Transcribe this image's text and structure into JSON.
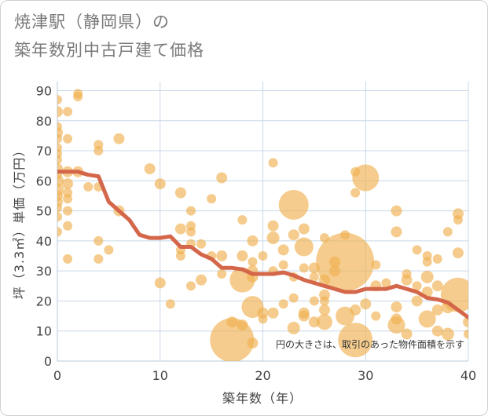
{
  "title_lines": [
    "焼津駅（静岡県）の",
    "築年数別中古戸建て価格"
  ],
  "chart_data": {
    "type": "scatter",
    "title": "焼津駅（静岡県）の築年数別中古戸建て価格",
    "xlabel": "築年数（年）",
    "ylabel": "坪（3.3㎡）単価（万円）",
    "xlim": [
      0,
      40
    ],
    "ylim": [
      0,
      93
    ],
    "xticks": [
      0,
      10,
      20,
      30,
      40
    ],
    "yticks": [
      0,
      10,
      20,
      30,
      40,
      50,
      60,
      70,
      80,
      90
    ],
    "grid": true,
    "note": "円の大きさは、取引のあった物件面積を示す",
    "colors": {
      "bubble": "#f0b050",
      "line": "#d4664a",
      "grid": "#c8d8e8"
    },
    "trend_line": {
      "x": [
        0,
        1,
        2,
        3,
        4,
        5,
        6,
        7,
        8,
        9,
        10,
        11,
        12,
        13,
        14,
        15,
        16,
        17,
        18,
        19,
        20,
        21,
        22,
        23,
        24,
        25,
        26,
        27,
        28,
        29,
        30,
        31,
        32,
        33,
        34,
        35,
        36,
        37,
        38,
        39,
        40
      ],
      "y": [
        63,
        63,
        63,
        62,
        61.5,
        53,
        50,
        47,
        42,
        41,
        41,
        41.5,
        38,
        38,
        35.5,
        34,
        31,
        31,
        30.5,
        29,
        29,
        29,
        29.5,
        28.5,
        27,
        26,
        25,
        24,
        23,
        23,
        24,
        24,
        24,
        25,
        24,
        23,
        21,
        20.5,
        19.5,
        17,
        14.5
      ]
    },
    "bubbles": [
      {
        "x": 0,
        "y": 87,
        "r": 6
      },
      {
        "x": 0,
        "y": 83,
        "r": 7
      },
      {
        "x": 0,
        "y": 78,
        "r": 6
      },
      {
        "x": 0,
        "y": 76,
        "r": 7
      },
      {
        "x": 0,
        "y": 74,
        "r": 6
      },
      {
        "x": 0,
        "y": 71,
        "r": 6
      },
      {
        "x": 0,
        "y": 69,
        "r": 6
      },
      {
        "x": 0,
        "y": 67,
        "r": 6
      },
      {
        "x": 0,
        "y": 64,
        "r": 7
      },
      {
        "x": 0,
        "y": 62,
        "r": 6
      },
      {
        "x": 0,
        "y": 60,
        "r": 8
      },
      {
        "x": 0,
        "y": 57,
        "r": 8
      },
      {
        "x": 0,
        "y": 55,
        "r": 7
      },
      {
        "x": 0,
        "y": 53,
        "r": 7
      },
      {
        "x": 0,
        "y": 51,
        "r": 6
      },
      {
        "x": 0,
        "y": 48,
        "r": 6
      },
      {
        "x": 0,
        "y": 43,
        "r": 6
      },
      {
        "x": 1,
        "y": 83,
        "r": 6
      },
      {
        "x": 1,
        "y": 74,
        "r": 6
      },
      {
        "x": 1,
        "y": 63,
        "r": 7
      },
      {
        "x": 1,
        "y": 59,
        "r": 7
      },
      {
        "x": 1,
        "y": 56,
        "r": 6
      },
      {
        "x": 1,
        "y": 54,
        "r": 6
      },
      {
        "x": 1,
        "y": 50,
        "r": 6
      },
      {
        "x": 1,
        "y": 45,
        "r": 6
      },
      {
        "x": 1,
        "y": 34,
        "r": 6
      },
      {
        "x": 2,
        "y": 89,
        "r": 6
      },
      {
        "x": 2,
        "y": 88,
        "r": 6
      },
      {
        "x": 2,
        "y": 63,
        "r": 7
      },
      {
        "x": 3,
        "y": 58,
        "r": 6
      },
      {
        "x": 4,
        "y": 72,
        "r": 6
      },
      {
        "x": 4,
        "y": 70,
        "r": 6
      },
      {
        "x": 4,
        "y": 58,
        "r": 6
      },
      {
        "x": 4,
        "y": 40,
        "r": 6
      },
      {
        "x": 4,
        "y": 34,
        "r": 6
      },
      {
        "x": 5,
        "y": 37,
        "r": 6
      },
      {
        "x": 6,
        "y": 74,
        "r": 7
      },
      {
        "x": 6,
        "y": 50,
        "r": 7
      },
      {
        "x": 9,
        "y": 64,
        "r": 7
      },
      {
        "x": 10,
        "y": 59,
        "r": 7
      },
      {
        "x": 10,
        "y": 26,
        "r": 7
      },
      {
        "x": 11,
        "y": 19,
        "r": 6
      },
      {
        "x": 12,
        "y": 56,
        "r": 7
      },
      {
        "x": 12,
        "y": 44,
        "r": 7
      },
      {
        "x": 12,
        "y": 37,
        "r": 6
      },
      {
        "x": 12,
        "y": 35,
        "r": 6
      },
      {
        "x": 13,
        "y": 50,
        "r": 6
      },
      {
        "x": 13,
        "y": 45,
        "r": 6
      },
      {
        "x": 13,
        "y": 43,
        "r": 6
      },
      {
        "x": 13,
        "y": 39,
        "r": 6
      },
      {
        "x": 13,
        "y": 25,
        "r": 6
      },
      {
        "x": 14,
        "y": 39,
        "r": 6
      },
      {
        "x": 14,
        "y": 27,
        "r": 7
      },
      {
        "x": 15,
        "y": 54,
        "r": 6
      },
      {
        "x": 15,
        "y": 35,
        "r": 6
      },
      {
        "x": 16,
        "y": 61,
        "r": 7
      },
      {
        "x": 16,
        "y": 35,
        "r": 7
      },
      {
        "x": 16,
        "y": 29,
        "r": 6
      },
      {
        "x": 17,
        "y": 13,
        "r": 7
      },
      {
        "x": 17,
        "y": 7,
        "r": 28
      },
      {
        "x": 18,
        "y": 47,
        "r": 6
      },
      {
        "x": 18,
        "y": 35,
        "r": 7
      },
      {
        "x": 18,
        "y": 27,
        "r": 16
      },
      {
        "x": 18,
        "y": 12,
        "r": 7
      },
      {
        "x": 19,
        "y": 40,
        "r": 7
      },
      {
        "x": 19,
        "y": 33,
        "r": 6
      },
      {
        "x": 19,
        "y": 30,
        "r": 7
      },
      {
        "x": 19,
        "y": 28,
        "r": 7
      },
      {
        "x": 19,
        "y": 18,
        "r": 14
      },
      {
        "x": 19,
        "y": 6,
        "r": 7
      },
      {
        "x": 20,
        "y": 35,
        "r": 6
      },
      {
        "x": 20,
        "y": 16,
        "r": 7
      },
      {
        "x": 20,
        "y": 14,
        "r": 6
      },
      {
        "x": 21,
        "y": 66,
        "r": 6
      },
      {
        "x": 21,
        "y": 45,
        "r": 7
      },
      {
        "x": 21,
        "y": 41,
        "r": 8
      },
      {
        "x": 21,
        "y": 30,
        "r": 6
      },
      {
        "x": 21,
        "y": 16,
        "r": 7
      },
      {
        "x": 22,
        "y": 37,
        "r": 7
      },
      {
        "x": 22,
        "y": 32,
        "r": 6
      },
      {
        "x": 22,
        "y": 19,
        "r": 6
      },
      {
        "x": 23,
        "y": 52,
        "r": 19
      },
      {
        "x": 23,
        "y": 42,
        "r": 7
      },
      {
        "x": 23,
        "y": 28,
        "r": 6
      },
      {
        "x": 23,
        "y": 21,
        "r": 6
      },
      {
        "x": 23,
        "y": 11,
        "r": 8
      },
      {
        "x": 24,
        "y": 44,
        "r": 7
      },
      {
        "x": 24,
        "y": 38,
        "r": 12
      },
      {
        "x": 24,
        "y": 31,
        "r": 6
      },
      {
        "x": 24,
        "y": 16,
        "r": 7
      },
      {
        "x": 24,
        "y": 15,
        "r": 7
      },
      {
        "x": 25,
        "y": 31,
        "r": 7
      },
      {
        "x": 25,
        "y": 28,
        "r": 6
      },
      {
        "x": 25,
        "y": 20,
        "r": 6
      },
      {
        "x": 25,
        "y": 13,
        "r": 7
      },
      {
        "x": 26,
        "y": 41,
        "r": 6
      },
      {
        "x": 26,
        "y": 27,
        "r": 7
      },
      {
        "x": 26,
        "y": 22,
        "r": 7
      },
      {
        "x": 26,
        "y": 20,
        "r": 6
      },
      {
        "x": 26,
        "y": 17,
        "r": 7
      },
      {
        "x": 26,
        "y": 13,
        "r": 10
      },
      {
        "x": 27,
        "y": 33,
        "r": 7
      },
      {
        "x": 27,
        "y": 30,
        "r": 7
      },
      {
        "x": 28,
        "y": 42,
        "r": 6
      },
      {
        "x": 28,
        "y": 33,
        "r": 37
      },
      {
        "x": 28,
        "y": 15,
        "r": 12
      },
      {
        "x": 29,
        "y": 63,
        "r": 6
      },
      {
        "x": 29,
        "y": 56,
        "r": 6
      },
      {
        "x": 29,
        "y": 17,
        "r": 7
      },
      {
        "x": 29,
        "y": 7,
        "r": 22
      },
      {
        "x": 30,
        "y": 61,
        "r": 17
      },
      {
        "x": 30,
        "y": 19,
        "r": 7
      },
      {
        "x": 31,
        "y": 32,
        "r": 6
      },
      {
        "x": 31,
        "y": 25,
        "r": 7
      },
      {
        "x": 31,
        "y": 15,
        "r": 6
      },
      {
        "x": 32,
        "y": 26,
        "r": 6
      },
      {
        "x": 33,
        "y": 50,
        "r": 7
      },
      {
        "x": 33,
        "y": 43,
        "r": 7
      },
      {
        "x": 33,
        "y": 18,
        "r": 7
      },
      {
        "x": 33,
        "y": 14,
        "r": 7
      },
      {
        "x": 33,
        "y": 12,
        "r": 11
      },
      {
        "x": 34,
        "y": 29,
        "r": 6
      },
      {
        "x": 34,
        "y": 27,
        "r": 7
      },
      {
        "x": 34,
        "y": 9,
        "r": 7
      },
      {
        "x": 35,
        "y": 37,
        "r": 6
      },
      {
        "x": 35,
        "y": 25,
        "r": 6
      },
      {
        "x": 35,
        "y": 20,
        "r": 7
      },
      {
        "x": 36,
        "y": 35,
        "r": 6
      },
      {
        "x": 36,
        "y": 33,
        "r": 6
      },
      {
        "x": 36,
        "y": 28,
        "r": 8
      },
      {
        "x": 36,
        "y": 23,
        "r": 7
      },
      {
        "x": 36,
        "y": 14,
        "r": 11
      },
      {
        "x": 37,
        "y": 34,
        "r": 6
      },
      {
        "x": 37,
        "y": 25,
        "r": 7
      },
      {
        "x": 37,
        "y": 17,
        "r": 7
      },
      {
        "x": 37,
        "y": 10,
        "r": 7
      },
      {
        "x": 38,
        "y": 43,
        "r": 6
      },
      {
        "x": 38,
        "y": 18,
        "r": 8
      },
      {
        "x": 38,
        "y": 9,
        "r": 8
      },
      {
        "x": 39,
        "y": 49,
        "r": 7
      },
      {
        "x": 39,
        "y": 47,
        "r": 6
      },
      {
        "x": 39,
        "y": 36,
        "r": 7
      },
      {
        "x": 39,
        "y": 22,
        "r": 22
      },
      {
        "x": 40,
        "y": 13,
        "r": 7
      },
      {
        "x": 40,
        "y": 9,
        "r": 6
      }
    ]
  }
}
